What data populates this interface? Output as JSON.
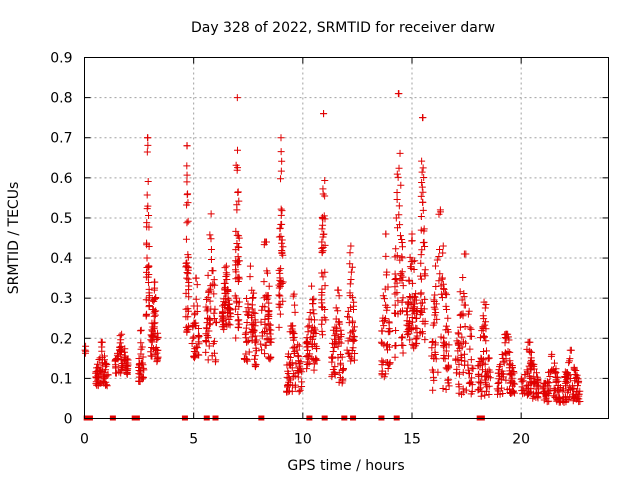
{
  "chart_data": {
    "type": "scatter",
    "title": "Day 328 of 2022, SRMTID for receiver darw",
    "xlabel": "GPS time / hours",
    "ylabel": "SRMTID / TECUs",
    "xlim": [
      0,
      24
    ],
    "ylim": [
      0,
      0.9
    ],
    "xticks": [
      0,
      5,
      10,
      15,
      20
    ],
    "xtick_labels": [
      "0",
      "5",
      "10",
      "15",
      "20"
    ],
    "yticks": [
      0,
      0.1,
      0.2,
      0.3,
      0.4,
      0.5,
      0.6,
      0.7,
      0.8,
      0.9
    ],
    "ytick_labels": [
      "0",
      "0.1",
      "0.2",
      "0.3",
      "0.4",
      "0.5",
      "0.6",
      "0.7",
      "0.8",
      "0.9"
    ],
    "grid": true,
    "marker": "+",
    "series_color": "#e00000",
    "zero_value_times": [
      0.1,
      0.25,
      1.3,
      2.3,
      2.4,
      4.6,
      5.6,
      6.0,
      8.1,
      10.3,
      11.0,
      11.9,
      12.3,
      13.6,
      14.3,
      18.1,
      18.2
    ],
    "bursts": [
      {
        "center": 0.05,
        "width": 0.08,
        "count": 3,
        "base": 0.16,
        "peak": 0.18
      },
      {
        "center": 0.8,
        "width": 0.6,
        "count": 60,
        "base": 0.08,
        "peak": 0.19
      },
      {
        "center": 1.7,
        "width": 0.6,
        "count": 60,
        "base": 0.11,
        "peak": 0.21
      },
      {
        "center": 2.6,
        "width": 0.25,
        "count": 30,
        "base": 0.09,
        "peak": 0.22
      },
      {
        "center": 2.9,
        "width": 0.15,
        "count": 35,
        "base": 0.25,
        "peak": 0.7
      },
      {
        "center": 3.2,
        "width": 0.35,
        "count": 55,
        "base": 0.14,
        "peak": 0.34
      },
      {
        "center": 4.7,
        "width": 0.15,
        "count": 40,
        "base": 0.2,
        "peak": 0.68
      },
      {
        "center": 5.1,
        "width": 0.35,
        "count": 35,
        "base": 0.15,
        "peak": 0.35
      },
      {
        "center": 5.8,
        "width": 0.5,
        "count": 55,
        "base": 0.14,
        "peak": 0.51
      },
      {
        "center": 6.5,
        "width": 0.4,
        "count": 60,
        "base": 0.22,
        "peak": 0.38
      },
      {
        "center": 7.0,
        "width": 0.2,
        "count": 45,
        "base": 0.2,
        "peak": 0.8
      },
      {
        "center": 7.6,
        "width": 0.6,
        "count": 60,
        "base": 0.12,
        "peak": 0.38
      },
      {
        "center": 8.3,
        "width": 0.5,
        "count": 55,
        "base": 0.14,
        "peak": 0.44
      },
      {
        "center": 9.0,
        "width": 0.2,
        "count": 40,
        "base": 0.22,
        "peak": 0.7
      },
      {
        "center": 9.6,
        "width": 0.7,
        "count": 70,
        "base": 0.06,
        "peak": 0.31
      },
      {
        "center": 10.4,
        "width": 0.5,
        "count": 55,
        "base": 0.12,
        "peak": 0.33
      },
      {
        "center": 10.95,
        "width": 0.2,
        "count": 40,
        "base": 0.2,
        "peak": 0.76
      },
      {
        "center": 11.6,
        "width": 0.6,
        "count": 55,
        "base": 0.08,
        "peak": 0.32
      },
      {
        "center": 12.2,
        "width": 0.35,
        "count": 40,
        "base": 0.14,
        "peak": 0.43
      },
      {
        "center": 13.8,
        "width": 0.4,
        "count": 45,
        "base": 0.1,
        "peak": 0.46
      },
      {
        "center": 14.4,
        "width": 0.4,
        "count": 55,
        "base": 0.14,
        "peak": 0.81
      },
      {
        "center": 15.0,
        "width": 0.5,
        "count": 70,
        "base": 0.17,
        "peak": 0.46
      },
      {
        "center": 15.5,
        "width": 0.25,
        "count": 45,
        "base": 0.18,
        "peak": 0.75
      },
      {
        "center": 16.3,
        "width": 0.8,
        "count": 80,
        "base": 0.07,
        "peak": 0.52
      },
      {
        "center": 17.4,
        "width": 0.8,
        "count": 70,
        "base": 0.06,
        "peak": 0.41
      },
      {
        "center": 18.3,
        "width": 0.6,
        "count": 60,
        "base": 0.05,
        "peak": 0.29
      },
      {
        "center": 19.3,
        "width": 0.8,
        "count": 75,
        "base": 0.06,
        "peak": 0.21
      },
      {
        "center": 20.4,
        "width": 0.8,
        "count": 75,
        "base": 0.05,
        "peak": 0.19
      },
      {
        "center": 21.4,
        "width": 0.8,
        "count": 70,
        "base": 0.04,
        "peak": 0.16
      },
      {
        "center": 22.3,
        "width": 0.8,
        "count": 70,
        "base": 0.04,
        "peak": 0.17
      }
    ]
  }
}
